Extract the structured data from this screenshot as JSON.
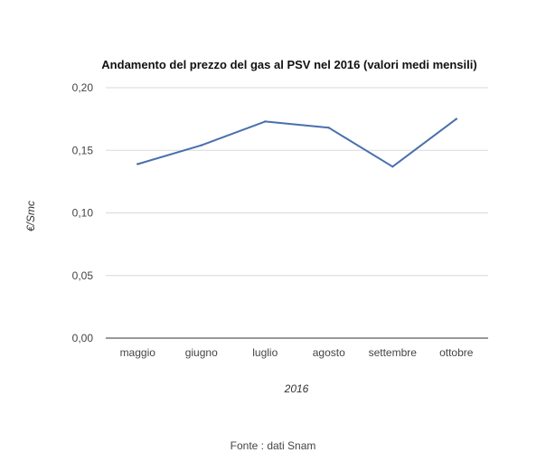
{
  "chart_data": {
    "type": "line",
    "title": "Andamento del prezzo del gas al PSV nel 2016 (valori medi mensili)",
    "xlabel": "2016",
    "ylabel": "€/Smc",
    "categories": [
      "maggio",
      "giugno",
      "luglio",
      "agosto",
      "settembre",
      "ottobre"
    ],
    "series": [
      {
        "values": [
          0.139,
          0.154,
          0.173,
          0.168,
          0.137,
          0.175
        ]
      }
    ],
    "ylim": [
      0,
      0.2
    ],
    "yticks": [
      "0,00",
      "0,05",
      "0,10",
      "0,15",
      "0,20"
    ],
    "grid": true,
    "legend": "none",
    "colors": {
      "series": "#4a6fad"
    }
  },
  "source": "Fonte : dati Snam"
}
